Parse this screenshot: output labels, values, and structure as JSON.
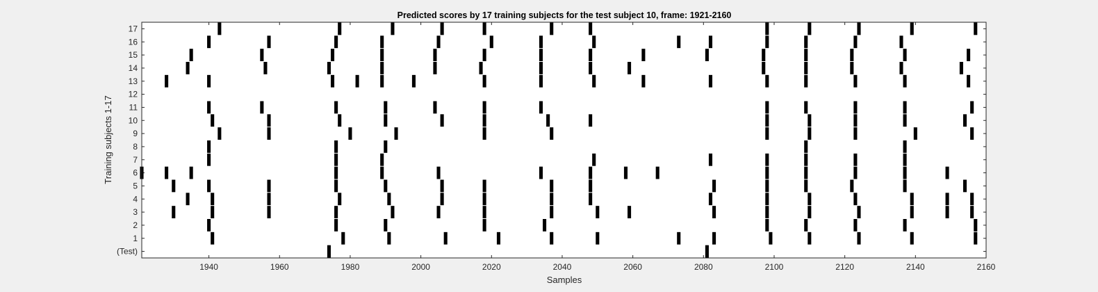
{
  "chart_data": {
    "type": "raster",
    "title": "Predicted scores by 17 training subjects for the test subject 10, frame: 1921-2160",
    "xlabel": "Samples",
    "ylabel": "Training subjects 1-17",
    "xlim": [
      1921,
      2160
    ],
    "xticks": [
      1940,
      1960,
      1980,
      2000,
      2020,
      2040,
      2060,
      2080,
      2100,
      2120,
      2140,
      2160
    ],
    "yticklabels": [
      "(Test)",
      "1",
      "2",
      "3",
      "4",
      "5",
      "6",
      "7",
      "8",
      "9",
      "10",
      "11",
      "12",
      "13",
      "14",
      "15",
      "16",
      "17"
    ],
    "mark_color": "#000000",
    "background_color": "#ffffff",
    "grid": false,
    "rows": [
      {
        "label": "(Test)",
        "x": [
          1974,
          2081
        ]
      },
      {
        "label": "1",
        "x": [
          1941,
          1978,
          1991,
          2007,
          2022,
          2037,
          2050,
          2073,
          2083,
          2099,
          2110,
          2124,
          2139,
          2157
        ]
      },
      {
        "label": "2",
        "x": [
          1940,
          1976,
          1990,
          2018,
          2035,
          2098,
          2109,
          2123,
          2137,
          2157
        ]
      },
      {
        "label": "3",
        "x": [
          1930,
          1941,
          1957,
          1976,
          1992,
          2005,
          2018,
          2037,
          2050,
          2059,
          2083,
          2098,
          2110,
          2124,
          2139,
          2149,
          2156
        ]
      },
      {
        "label": "4",
        "x": [
          1934,
          1941,
          1957,
          1977,
          1991,
          2006,
          2018,
          2037,
          2048,
          2082,
          2098,
          2110,
          2123,
          2139,
          2149,
          2156
        ]
      },
      {
        "label": "5",
        "x": [
          1930,
          1940,
          1957,
          1976,
          1990,
          2006,
          2018,
          2037,
          2048,
          2083,
          2098,
          2109,
          2122,
          2137,
          2154
        ]
      },
      {
        "label": "6",
        "x": [
          1921,
          1928,
          1935,
          1976,
          1989,
          2005,
          2034,
          2048,
          2058,
          2067,
          2098,
          2109,
          2123,
          2137,
          2149
        ]
      },
      {
        "label": "7",
        "x": [
          1940,
          1976,
          1989,
          2049,
          2082,
          2098,
          2109,
          2123,
          2137
        ]
      },
      {
        "label": "8",
        "x": [
          1940,
          1976,
          1990,
          2109,
          2137
        ]
      },
      {
        "label": "9",
        "x": [
          1943,
          1957,
          1980,
          1993,
          2018,
          2037,
          2098,
          2110,
          2123,
          2140,
          2156
        ]
      },
      {
        "label": "10",
        "x": [
          1941,
          1957,
          1977,
          1990,
          2006,
          2018,
          2036,
          2048,
          2098,
          2110,
          2123,
          2137,
          2154
        ]
      },
      {
        "label": "11",
        "x": [
          1940,
          1955,
          1976,
          1990,
          2004,
          2018,
          2034,
          2098,
          2109,
          2123,
          2137,
          2156
        ]
      },
      {
        "label": "12",
        "x": []
      },
      {
        "label": "13",
        "x": [
          1928,
          1940,
          1975,
          1982,
          1989,
          1998,
          2018,
          2034,
          2049,
          2063,
          2082,
          2098,
          2109,
          2123,
          2137,
          2155
        ]
      },
      {
        "label": "14",
        "x": [
          1934,
          1956,
          1974,
          1989,
          2004,
          2017,
          2034,
          2048,
          2059,
          2097,
          2109,
          2122,
          2136,
          2153
        ]
      },
      {
        "label": "15",
        "x": [
          1935,
          1955,
          1975,
          1989,
          2004,
          2018,
          2034,
          2048,
          2063,
          2081,
          2097,
          2109,
          2122,
          2137,
          2155
        ]
      },
      {
        "label": "16",
        "x": [
          1940,
          1957,
          1976,
          1989,
          2005,
          2020,
          2034,
          2049,
          2073,
          2082,
          2098,
          2109,
          2123,
          2136
        ]
      },
      {
        "label": "17",
        "x": [
          1943,
          1977,
          1992,
          2006,
          2018,
          2037,
          2048,
          2098,
          2110,
          2124,
          2139,
          2157
        ]
      }
    ]
  }
}
